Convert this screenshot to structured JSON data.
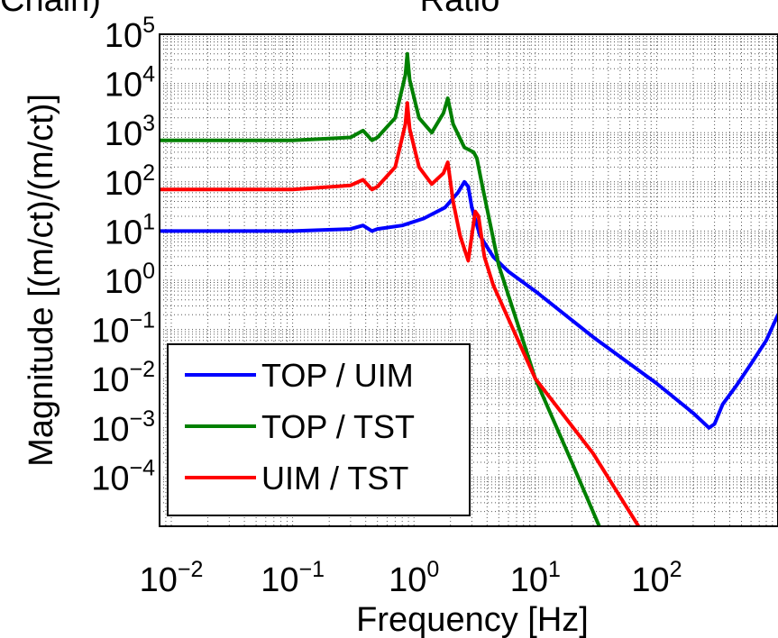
{
  "page_top_left_text": "Chain)",
  "page_top_center_text": "Ratio",
  "chart_data": {
    "type": "line",
    "xlabel": "Frequency [Hz]",
    "ylabel": "Magnitude [(m/ct)/(m/ct)]",
    "x_scale": "log",
    "y_scale": "log",
    "xlim": [
      0.008,
      1000
    ],
    "ylim": [
      1e-05,
      100000
    ],
    "x_ticks": [
      {
        "base": "10",
        "exp": "−2"
      },
      {
        "base": "10",
        "exp": "−1"
      },
      {
        "base": "10",
        "exp": "0"
      },
      {
        "base": "10",
        "exp": "1"
      },
      {
        "base": "10",
        "exp": "2"
      }
    ],
    "y_ticks": [
      {
        "base": "10",
        "exp": "−4"
      },
      {
        "base": "10",
        "exp": "−3"
      },
      {
        "base": "10",
        "exp": "−2"
      },
      {
        "base": "10",
        "exp": "−1"
      },
      {
        "base": "10",
        "exp": "0"
      },
      {
        "base": "10",
        "exp": "1"
      },
      {
        "base": "10",
        "exp": "2"
      },
      {
        "base": "10",
        "exp": "3"
      },
      {
        "base": "10",
        "exp": "4"
      },
      {
        "base": "10",
        "exp": "5"
      }
    ],
    "grid": true,
    "legend_position": "bottom-left",
    "series": [
      {
        "name": "TOP / UIM",
        "color": "#0000ff",
        "x": [
          0.008,
          0.1,
          0.3,
          0.38,
          0.45,
          0.5,
          0.8,
          1.2,
          1.8,
          2.3,
          2.6,
          2.8,
          3.0,
          3.5,
          4.5,
          6,
          10,
          30,
          100,
          200,
          270,
          300,
          350,
          450,
          600,
          800,
          1000
        ],
        "y": [
          10,
          10,
          11,
          13,
          10,
          11,
          13,
          18,
          30,
          60,
          100,
          80,
          30,
          8,
          3,
          1.5,
          0.6,
          0.07,
          0.008,
          0.002,
          0.001,
          0.0012,
          0.003,
          0.007,
          0.02,
          0.06,
          0.2
        ]
      },
      {
        "name": "TOP / TST",
        "color": "#008000",
        "x": [
          0.008,
          0.1,
          0.3,
          0.38,
          0.45,
          0.5,
          0.7,
          0.85,
          0.88,
          0.92,
          1.1,
          1.4,
          1.75,
          1.9,
          2.1,
          2.6,
          3.1,
          3.3,
          3.6,
          5,
          10,
          20,
          35
        ],
        "y": [
          700,
          700,
          800,
          1100,
          700,
          800,
          2000,
          15000,
          40000,
          12000,
          2000,
          1000,
          2500,
          5000,
          1500,
          500,
          400,
          300,
          100,
          2,
          0.01,
          0.0002,
          8e-06
        ]
      },
      {
        "name": "UIM / TST",
        "color": "#ff0000",
        "x": [
          0.008,
          0.1,
          0.3,
          0.38,
          0.45,
          0.5,
          0.7,
          0.85,
          0.88,
          0.92,
          1.1,
          1.4,
          1.75,
          1.9,
          2.1,
          2.4,
          2.8,
          3.2,
          3.4,
          3.8,
          4.5,
          10,
          30,
          75
        ],
        "y": [
          70,
          70,
          85,
          110,
          70,
          80,
          200,
          1500,
          4000,
          1200,
          200,
          90,
          150,
          250,
          40,
          8,
          2.5,
          25,
          20,
          3,
          0.8,
          0.01,
          0.0003,
          8e-06
        ]
      }
    ]
  }
}
